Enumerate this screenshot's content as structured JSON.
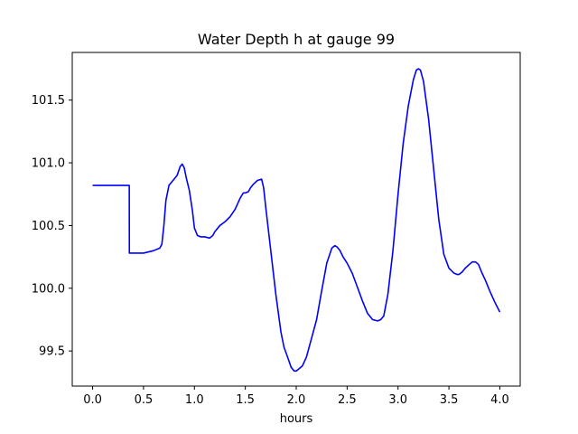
{
  "chart_data": {
    "type": "line",
    "title": "Water Depth h at gauge 99",
    "xlabel": "hours",
    "ylabel": "",
    "xlim": [
      -0.2,
      4.2
    ],
    "ylim": [
      99.22,
      101.88
    ],
    "xticks": [
      0.0,
      0.5,
      1.0,
      1.5,
      2.0,
      2.5,
      3.0,
      3.5,
      4.0
    ],
    "xtick_labels": [
      "0.0",
      "0.5",
      "1.0",
      "1.5",
      "2.0",
      "2.5",
      "3.0",
      "3.5",
      "4.0"
    ],
    "yticks": [
      99.5,
      100.0,
      100.5,
      101.0,
      101.5
    ],
    "ytick_labels": [
      "99.5",
      "100.0",
      "100.5",
      "101.0",
      "101.5"
    ],
    "grid": false,
    "series": [
      {
        "color": "#0000ff",
        "x": [
          0.0,
          0.1,
          0.2,
          0.3,
          0.36,
          0.361,
          0.4,
          0.5,
          0.6,
          0.66,
          0.68,
          0.7,
          0.72,
          0.75,
          0.78,
          0.8,
          0.83,
          0.86,
          0.88,
          0.9,
          0.92,
          0.95,
          0.98,
          1.0,
          1.03,
          1.06,
          1.1,
          1.15,
          1.18,
          1.2,
          1.25,
          1.3,
          1.35,
          1.4,
          1.45,
          1.48,
          1.5,
          1.53,
          1.55,
          1.58,
          1.62,
          1.66,
          1.68,
          1.7,
          1.75,
          1.8,
          1.85,
          1.88,
          1.92,
          1.95,
          1.98,
          2.0,
          2.03,
          2.06,
          2.1,
          2.15,
          2.2,
          2.25,
          2.3,
          2.35,
          2.38,
          2.4,
          2.43,
          2.46,
          2.5,
          2.55,
          2.6,
          2.65,
          2.7,
          2.75,
          2.8,
          2.83,
          2.86,
          2.9,
          2.95,
          3.0,
          3.05,
          3.1,
          3.15,
          3.18,
          3.2,
          3.22,
          3.25,
          3.3,
          3.35,
          3.4,
          3.45,
          3.5,
          3.55,
          3.58,
          3.6,
          3.63,
          3.66,
          3.7,
          3.73,
          3.76,
          3.79,
          3.82,
          3.86,
          3.9,
          3.95,
          4.0
        ],
        "y": [
          100.82,
          100.82,
          100.82,
          100.82,
          100.82,
          100.28,
          100.28,
          100.28,
          100.3,
          100.32,
          100.35,
          100.5,
          100.7,
          100.82,
          100.85,
          100.87,
          100.9,
          100.97,
          100.99,
          100.96,
          100.88,
          100.78,
          100.62,
          100.48,
          100.42,
          100.41,
          100.41,
          100.4,
          100.42,
          100.45,
          100.5,
          100.53,
          100.57,
          100.63,
          100.72,
          100.76,
          100.76,
          100.77,
          100.8,
          100.83,
          100.86,
          100.87,
          100.8,
          100.65,
          100.3,
          99.95,
          99.65,
          99.53,
          99.44,
          99.37,
          99.34,
          99.34,
          99.36,
          99.38,
          99.45,
          99.6,
          99.75,
          99.98,
          100.2,
          100.32,
          100.34,
          100.33,
          100.3,
          100.25,
          100.2,
          100.12,
          100.01,
          99.9,
          99.8,
          99.75,
          99.74,
          99.75,
          99.78,
          99.95,
          100.3,
          100.75,
          101.15,
          101.45,
          101.66,
          101.74,
          101.75,
          101.74,
          101.65,
          101.35,
          100.95,
          100.55,
          100.27,
          100.16,
          100.12,
          100.11,
          100.11,
          100.13,
          100.16,
          100.19,
          100.21,
          100.21,
          100.19,
          100.13,
          100.06,
          99.98,
          99.89,
          99.81
        ]
      }
    ]
  }
}
